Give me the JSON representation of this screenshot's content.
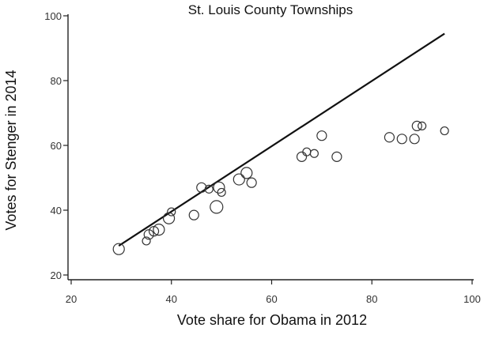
{
  "chart_data": {
    "type": "scatter",
    "title": "St. Louis County Townships",
    "xlabel": "Vote share for Obama in 2012",
    "ylabel": "Votes for Stenger in 2014",
    "xlim": [
      20,
      100
    ],
    "ylim": [
      20,
      100
    ],
    "xticks": [
      "20",
      "40",
      "60",
      "80",
      "100"
    ],
    "yticks": [
      "20",
      "40",
      "60",
      "80",
      "100"
    ],
    "grid": false,
    "line": {
      "x": [
        29.5,
        94.5
      ],
      "y": [
        29,
        94.5
      ]
    },
    "points": [
      {
        "x": 29.5,
        "y": 28.0,
        "r": 7
      },
      {
        "x": 35.0,
        "y": 30.5,
        "r": 5
      },
      {
        "x": 35.5,
        "y": 32.5,
        "r": 6
      },
      {
        "x": 36.5,
        "y": 33.5,
        "r": 6
      },
      {
        "x": 37.5,
        "y": 34.0,
        "r": 7
      },
      {
        "x": 39.5,
        "y": 37.5,
        "r": 7
      },
      {
        "x": 40.0,
        "y": 39.5,
        "r": 5
      },
      {
        "x": 44.5,
        "y": 38.5,
        "r": 6
      },
      {
        "x": 46.0,
        "y": 47.0,
        "r": 6
      },
      {
        "x": 47.5,
        "y": 46.5,
        "r": 5
      },
      {
        "x": 49.0,
        "y": 41.0,
        "r": 8
      },
      {
        "x": 49.5,
        "y": 47.0,
        "r": 7
      },
      {
        "x": 50.0,
        "y": 45.5,
        "r": 5
      },
      {
        "x": 53.5,
        "y": 49.5,
        "r": 7
      },
      {
        "x": 55.0,
        "y": 51.5,
        "r": 7
      },
      {
        "x": 56.0,
        "y": 48.5,
        "r": 6
      },
      {
        "x": 66.0,
        "y": 56.5,
        "r": 6
      },
      {
        "x": 67.0,
        "y": 58.0,
        "r": 5
      },
      {
        "x": 68.5,
        "y": 57.5,
        "r": 5
      },
      {
        "x": 70.0,
        "y": 63.0,
        "r": 6
      },
      {
        "x": 73.0,
        "y": 56.5,
        "r": 6
      },
      {
        "x": 83.5,
        "y": 62.5,
        "r": 6
      },
      {
        "x": 86.0,
        "y": 62.0,
        "r": 6
      },
      {
        "x": 88.5,
        "y": 62.0,
        "r": 6
      },
      {
        "x": 89.0,
        "y": 66.0,
        "r": 6
      },
      {
        "x": 90.0,
        "y": 66.0,
        "r": 5
      },
      {
        "x": 94.5,
        "y": 64.5,
        "r": 5
      }
    ]
  }
}
